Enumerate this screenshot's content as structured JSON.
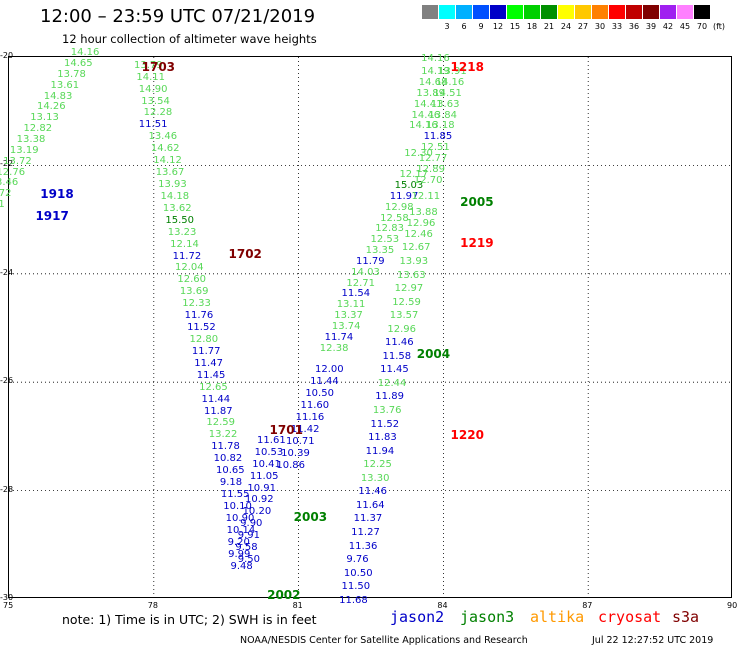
{
  "header": {
    "title": "12:00 – 23:59 UTC 07/21/2019",
    "subtitle": "12 hour collection of altimeter wave heights"
  },
  "legend": {
    "unit": "(ft)",
    "items": [
      {
        "value": "",
        "color": "#808080"
      },
      {
        "value": "3",
        "color": "#00ffff"
      },
      {
        "value": "6",
        "color": "#00b0ff"
      },
      {
        "value": "9",
        "color": "#0050ff"
      },
      {
        "value": "12",
        "color": "#0000c8"
      },
      {
        "value": "15",
        "color": "#00ff00"
      },
      {
        "value": "18",
        "color": "#00d000"
      },
      {
        "value": "21",
        "color": "#009000"
      },
      {
        "value": "24",
        "color": "#ffff00"
      },
      {
        "value": "27",
        "color": "#ffc800"
      },
      {
        "value": "30",
        "color": "#ff8000"
      },
      {
        "value": "33",
        "color": "#ff0000"
      },
      {
        "value": "36",
        "color": "#c00000"
      },
      {
        "value": "39",
        "color": "#800000"
      },
      {
        "value": "42",
        "color": "#a020f0"
      },
      {
        "value": "45",
        "color": "#ff80ff"
      },
      {
        "value": "70",
        "color": "#000000"
      }
    ]
  },
  "axes": {
    "x_ticks": [
      "75",
      "78",
      "81",
      "84",
      "87",
      "90"
    ],
    "y_ticks": [
      "-20",
      "-22",
      "-24",
      "-26",
      "-28",
      "-30"
    ]
  },
  "colors": {
    "green_light": "#58d858",
    "blue": "#0000c8",
    "darkgreen": "#008000",
    "darkred": "#800000",
    "red": "#ff0000",
    "jason2": "#0000c8",
    "jason3": "#008000",
    "altika": "#ff9900",
    "cryosat": "#ff0000",
    "s3a": "#800000"
  },
  "map": {
    "track_labels": [
      {
        "lon": 76.59,
        "lat": -19.95,
        "text": "14.16",
        "c": "green_light"
      },
      {
        "lon": 76.45,
        "lat": -20.15,
        "text": "14.65",
        "c": "green_light"
      },
      {
        "lon": 76.31,
        "lat": -20.35,
        "text": "13.78",
        "c": "green_light"
      },
      {
        "lon": 76.17,
        "lat": -20.55,
        "text": "13.61",
        "c": "green_light"
      },
      {
        "lon": 76.03,
        "lat": -20.75,
        "text": "14.83",
        "c": "green_light"
      },
      {
        "lon": 75.89,
        "lat": -20.95,
        "text": "14.26",
        "c": "green_light"
      },
      {
        "lon": 75.75,
        "lat": -21.15,
        "text": "13.13",
        "c": "green_light"
      },
      {
        "lon": 75.61,
        "lat": -21.35,
        "text": "12.82",
        "c": "green_light"
      },
      {
        "lon": 75.47,
        "lat": -21.55,
        "text": "13.38",
        "c": "green_light"
      },
      {
        "lon": 75.33,
        "lat": -21.75,
        "text": "13.19",
        "c": "green_light"
      },
      {
        "lon": 75.19,
        "lat": -21.95,
        "text": "13.72",
        "c": "green_light"
      },
      {
        "lon": 75.05,
        "lat": -22.15,
        "text": "12.76",
        "c": "green_light"
      },
      {
        "lon": 74.91,
        "lat": -22.35,
        "text": "13.46",
        "c": "green_light"
      },
      {
        "lon": 74.77,
        "lat": -22.55,
        "text": "13.72",
        "c": "green_light"
      },
      {
        "lon": 74.63,
        "lat": -22.75,
        "text": "14.81",
        "c": "green_light"
      },
      {
        "lon": 74.49,
        "lat": -22.95,
        "text": "14.58",
        "c": "green_light"
      },
      {
        "lon": 77.9,
        "lat": -20.18,
        "text": "13.79",
        "c": "green_light"
      },
      {
        "lon": 77.95,
        "lat": -20.4,
        "text": "14.11",
        "c": "green_light"
      },
      {
        "lon": 78.0,
        "lat": -20.62,
        "text": "14.90",
        "c": "green_light"
      },
      {
        "lon": 78.05,
        "lat": -20.84,
        "text": "13.54",
        "c": "green_light"
      },
      {
        "lon": 78.1,
        "lat": -21.06,
        "text": "12.28",
        "c": "green_light"
      },
      {
        "lon": 78.0,
        "lat": -21.28,
        "text": "11.51",
        "c": "blue"
      },
      {
        "lon": 78.2,
        "lat": -21.5,
        "text": "13.46",
        "c": "green_light"
      },
      {
        "lon": 78.25,
        "lat": -21.72,
        "text": "14.62",
        "c": "green_light"
      },
      {
        "lon": 78.3,
        "lat": -21.94,
        "text": "14.12",
        "c": "green_light"
      },
      {
        "lon": 78.35,
        "lat": -22.16,
        "text": "13.67",
        "c": "green_light"
      },
      {
        "lon": 78.4,
        "lat": -22.38,
        "text": "13.93",
        "c": "green_light"
      },
      {
        "lon": 78.45,
        "lat": -22.6,
        "text": "14.18",
        "c": "green_light"
      },
      {
        "lon": 78.5,
        "lat": -22.82,
        "text": "13.62",
        "c": "green_light"
      },
      {
        "lon": 78.55,
        "lat": -23.04,
        "text": "15.50",
        "c": "darkgreen"
      },
      {
        "lon": 78.6,
        "lat": -23.26,
        "text": "13.23",
        "c": "green_light"
      },
      {
        "lon": 78.65,
        "lat": -23.48,
        "text": "12.14",
        "c": "green_light"
      },
      {
        "lon": 78.7,
        "lat": -23.7,
        "text": "11.72",
        "c": "blue"
      },
      {
        "lon": 78.75,
        "lat": -23.92,
        "text": "12.04",
        "c": "green_light"
      },
      {
        "lon": 78.8,
        "lat": -24.14,
        "text": "12.60",
        "c": "green_light"
      },
      {
        "lon": 78.85,
        "lat": -24.36,
        "text": "13.69",
        "c": "green_light"
      },
      {
        "lon": 78.9,
        "lat": -24.58,
        "text": "12.33",
        "c": "green_light"
      },
      {
        "lon": 78.95,
        "lat": -24.8,
        "text": "11.76",
        "c": "blue"
      },
      {
        "lon": 79.0,
        "lat": -25.02,
        "text": "11.52",
        "c": "blue"
      },
      {
        "lon": 79.05,
        "lat": -25.24,
        "text": "12.80",
        "c": "green_light"
      },
      {
        "lon": 79.1,
        "lat": -25.46,
        "text": "11.77",
        "c": "blue"
      },
      {
        "lon": 79.15,
        "lat": -25.68,
        "text": "11.47",
        "c": "blue"
      },
      {
        "lon": 79.2,
        "lat": -25.9,
        "text": "11.45",
        "c": "blue"
      },
      {
        "lon": 79.25,
        "lat": -26.12,
        "text": "12.65",
        "c": "green_light"
      },
      {
        "lon": 79.3,
        "lat": -26.34,
        "text": "11.44",
        "c": "blue"
      },
      {
        "lon": 79.35,
        "lat": -26.56,
        "text": "11.87",
        "c": "blue"
      },
      {
        "lon": 79.4,
        "lat": -26.78,
        "text": "12.59",
        "c": "green_light"
      },
      {
        "lon": 79.45,
        "lat": -27.0,
        "text": "13.22",
        "c": "green_light"
      },
      {
        "lon": 79.5,
        "lat": -27.22,
        "text": "11.78",
        "c": "blue"
      },
      {
        "lon": 79.55,
        "lat": -27.44,
        "text": "10.82",
        "c": "blue"
      },
      {
        "lon": 79.6,
        "lat": -27.66,
        "text": "10.65",
        "c": "blue"
      },
      {
        "lon": 79.68,
        "lat": -27.88,
        "text": "9.18",
        "c": "blue"
      },
      {
        "lon": 79.7,
        "lat": -28.1,
        "text": "11.55",
        "c": "blue"
      },
      {
        "lon": 79.75,
        "lat": -28.32,
        "text": "10.10",
        "c": "blue"
      },
      {
        "lon": 79.8,
        "lat": -28.54,
        "text": "10.90",
        "c": "blue"
      },
      {
        "lon": 79.82,
        "lat": -28.76,
        "text": "10.14",
        "c": "blue"
      },
      {
        "lon": 79.84,
        "lat": -28.98,
        "text": "9.20",
        "c": "blue"
      },
      {
        "lon": 79.85,
        "lat": -29.2,
        "text": "9.99",
        "c": "blue"
      },
      {
        "lon": 79.9,
        "lat": -29.42,
        "text": "9.48",
        "c": "blue"
      },
      {
        "lon": 80.45,
        "lat": -27.1,
        "text": "11.61",
        "c": "blue"
      },
      {
        "lon": 80.4,
        "lat": -27.32,
        "text": "10.53",
        "c": "blue"
      },
      {
        "lon": 80.35,
        "lat": -27.54,
        "text": "10.41",
        "c": "blue"
      },
      {
        "lon": 80.3,
        "lat": -27.76,
        "text": "11.05",
        "c": "blue"
      },
      {
        "lon": 80.25,
        "lat": -27.98,
        "text": "10.91",
        "c": "blue"
      },
      {
        "lon": 80.2,
        "lat": -28.2,
        "text": "10.92",
        "c": "blue"
      },
      {
        "lon": 80.15,
        "lat": -28.42,
        "text": "10.20",
        "c": "blue"
      },
      {
        "lon": 80.1,
        "lat": -28.64,
        "text": "9.90",
        "c": "blue"
      },
      {
        "lon": 80.05,
        "lat": -28.86,
        "text": "9.91",
        "c": "blue"
      },
      {
        "lon": 80.0,
        "lat": -29.08,
        "text": "9.58",
        "c": "blue"
      },
      {
        "lon": 80.05,
        "lat": -29.3,
        "text": "9.50",
        "c": "blue"
      },
      {
        "lon": 81.65,
        "lat": -25.8,
        "text": "12.00",
        "c": "blue"
      },
      {
        "lon": 81.55,
        "lat": -26.02,
        "text": "11.44",
        "c": "blue"
      },
      {
        "lon": 81.45,
        "lat": -26.24,
        "text": "10.50",
        "c": "blue"
      },
      {
        "lon": 81.35,
        "lat": -26.46,
        "text": "11.60",
        "c": "blue"
      },
      {
        "lon": 81.25,
        "lat": -26.68,
        "text": "11.16",
        "c": "blue"
      },
      {
        "lon": 81.15,
        "lat": -26.9,
        "text": "11.42",
        "c": "blue"
      },
      {
        "lon": 81.05,
        "lat": -27.12,
        "text": "10.71",
        "c": "blue"
      },
      {
        "lon": 80.95,
        "lat": -27.34,
        "text": "10.39",
        "c": "blue"
      },
      {
        "lon": 80.85,
        "lat": -27.56,
        "text": "10.86",
        "c": "blue"
      },
      {
        "lon": 81.75,
        "lat": -25.4,
        "text": "12.38",
        "c": "green_light"
      },
      {
        "lon": 81.85,
        "lat": -25.2,
        "text": "11.74",
        "c": "blue"
      },
      {
        "lon": 82.0,
        "lat": -25.0,
        "text": "13.74",
        "c": "green_light"
      },
      {
        "lon": 82.05,
        "lat": -24.8,
        "text": "13.37",
        "c": "green_light"
      },
      {
        "lon": 82.1,
        "lat": -24.6,
        "text": "13.11",
        "c": "green_light"
      },
      {
        "lon": 82.2,
        "lat": -24.4,
        "text": "11.54",
        "c": "blue"
      },
      {
        "lon": 82.3,
        "lat": -24.2,
        "text": "12.71",
        "c": "green_light"
      },
      {
        "lon": 82.4,
        "lat": -24.0,
        "text": "14.03",
        "c": "green_light"
      },
      {
        "lon": 82.5,
        "lat": -23.8,
        "text": "11.79",
        "c": "blue"
      },
      {
        "lon": 82.7,
        "lat": -23.6,
        "text": "13.35",
        "c": "green_light"
      },
      {
        "lon": 82.8,
        "lat": -23.4,
        "text": "12.53",
        "c": "green_light"
      },
      {
        "lon": 82.9,
        "lat": -23.2,
        "text": "12.83",
        "c": "green_light"
      },
      {
        "lon": 83.0,
        "lat": -23.0,
        "text": "12.58",
        "c": "green_light"
      },
      {
        "lon": 83.1,
        "lat": -22.8,
        "text": "12.98",
        "c": "green_light"
      },
      {
        "lon": 83.2,
        "lat": -22.6,
        "text": "11.97",
        "c": "blue"
      },
      {
        "lon": 83.3,
        "lat": -22.4,
        "text": "15.03",
        "c": "darkgreen"
      },
      {
        "lon": 83.4,
        "lat": -22.2,
        "text": "12.17",
        "c": "green_light"
      },
      {
        "lon": 83.5,
        "lat": -21.8,
        "text": "12.30",
        "c": "green_light"
      },
      {
        "lon": 83.6,
        "lat": -21.3,
        "text": "14.16",
        "c": "green_light"
      },
      {
        "lon": 83.65,
        "lat": -21.1,
        "text": "14.46",
        "c": "green_light"
      },
      {
        "lon": 83.7,
        "lat": -20.9,
        "text": "14.41",
        "c": "green_light"
      },
      {
        "lon": 83.75,
        "lat": -20.7,
        "text": "13.89",
        "c": "green_light"
      },
      {
        "lon": 83.8,
        "lat": -20.5,
        "text": "14.68",
        "c": "green_light"
      },
      {
        "lon": 83.85,
        "lat": -20.3,
        "text": "14.19",
        "c": "green_light"
      },
      {
        "lon": 83.85,
        "lat": -20.05,
        "text": "14.16",
        "c": "green_light"
      },
      {
        "lon": 84.2,
        "lat": -20.3,
        "text": "13.91",
        "c": "green_light"
      },
      {
        "lon": 84.15,
        "lat": -20.5,
        "text": "14.16",
        "c": "green_light"
      },
      {
        "lon": 84.1,
        "lat": -20.7,
        "text": "14.51",
        "c": "green_light"
      },
      {
        "lon": 84.05,
        "lat": -20.9,
        "text": "13.63",
        "c": "green_light"
      },
      {
        "lon": 84.0,
        "lat": -21.1,
        "text": "13.84",
        "c": "green_light"
      },
      {
        "lon": 83.95,
        "lat": -21.3,
        "text": "13.18",
        "c": "green_light"
      },
      {
        "lon": 83.9,
        "lat": -21.5,
        "text": "11.85",
        "c": "blue"
      },
      {
        "lon": 83.85,
        "lat": -21.7,
        "text": "12.51",
        "c": "green_light"
      },
      {
        "lon": 83.8,
        "lat": -21.9,
        "text": "12.77",
        "c": "green_light"
      },
      {
        "lon": 83.75,
        "lat": -22.1,
        "text": "12.89",
        "c": "green_light"
      },
      {
        "lon": 83.7,
        "lat": -22.3,
        "text": "12.70",
        "c": "green_light"
      },
      {
        "lon": 83.65,
        "lat": -22.6,
        "text": "12.11",
        "c": "green_light"
      },
      {
        "lon": 83.6,
        "lat": -22.9,
        "text": "13.88",
        "c": "green_light"
      },
      {
        "lon": 83.55,
        "lat": -23.1,
        "text": "12.96",
        "c": "green_light"
      },
      {
        "lon": 83.5,
        "lat": -23.3,
        "text": "12.46",
        "c": "green_light"
      },
      {
        "lon": 83.45,
        "lat": -23.55,
        "text": "12.67",
        "c": "green_light"
      },
      {
        "lon": 83.4,
        "lat": -23.8,
        "text": "13.93",
        "c": "green_light"
      },
      {
        "lon": 83.35,
        "lat": -24.05,
        "text": "13.63",
        "c": "green_light"
      },
      {
        "lon": 83.3,
        "lat": -24.3,
        "text": "12.97",
        "c": "green_light"
      },
      {
        "lon": 83.25,
        "lat": -24.55,
        "text": "12.59",
        "c": "green_light"
      },
      {
        "lon": 83.2,
        "lat": -24.8,
        "text": "13.57",
        "c": "green_light"
      },
      {
        "lon": 83.15,
        "lat": -25.05,
        "text": "12.96",
        "c": "green_light"
      },
      {
        "lon": 83.1,
        "lat": -25.3,
        "text": "11.46",
        "c": "blue"
      },
      {
        "lon": 83.05,
        "lat": -25.55,
        "text": "11.58",
        "c": "blue"
      },
      {
        "lon": 83.0,
        "lat": -25.8,
        "text": "11.45",
        "c": "blue"
      },
      {
        "lon": 82.95,
        "lat": -26.05,
        "text": "12.44",
        "c": "green_light"
      },
      {
        "lon": 82.9,
        "lat": -26.3,
        "text": "11.89",
        "c": "blue"
      },
      {
        "lon": 82.85,
        "lat": -26.55,
        "text": "13.76",
        "c": "green_light"
      },
      {
        "lon": 82.8,
        "lat": -26.8,
        "text": "11.52",
        "c": "blue"
      },
      {
        "lon": 82.75,
        "lat": -27.05,
        "text": "11.83",
        "c": "blue"
      },
      {
        "lon": 82.7,
        "lat": -27.3,
        "text": "11.94",
        "c": "blue"
      },
      {
        "lon": 82.65,
        "lat": -27.55,
        "text": "12.25",
        "c": "green_light"
      },
      {
        "lon": 82.6,
        "lat": -27.8,
        "text": "13.30",
        "c": "green_light"
      },
      {
        "lon": 82.55,
        "lat": -28.05,
        "text": "11.46",
        "c": "blue"
      },
      {
        "lon": 82.5,
        "lat": -28.3,
        "text": "11.64",
        "c": "blue"
      },
      {
        "lon": 82.45,
        "lat": -28.55,
        "text": "11.37",
        "c": "blue"
      },
      {
        "lon": 82.4,
        "lat": -28.8,
        "text": "11.27",
        "c": "blue"
      },
      {
        "lon": 82.35,
        "lat": -29.05,
        "text": "11.36",
        "c": "blue"
      },
      {
        "lon": 82.3,
        "lat": -29.3,
        "text": "9.76",
        "c": "blue"
      },
      {
        "lon": 82.25,
        "lat": -29.55,
        "text": "10.50",
        "c": "blue"
      },
      {
        "lon": 82.2,
        "lat": -29.8,
        "text": "11.50",
        "c": "blue"
      },
      {
        "lon": 82.15,
        "lat": -30.05,
        "text": "11.68",
        "c": "blue"
      }
    ],
    "pass_labels": [
      {
        "lon": 78.1,
        "lat": -20.2,
        "text": "1703",
        "c": "darkred"
      },
      {
        "lon": 76.0,
        "lat": -22.55,
        "text": "1918",
        "c": "blue"
      },
      {
        "lon": 75.9,
        "lat": -22.95,
        "text": "1917",
        "c": "blue"
      },
      {
        "lon": 79.9,
        "lat": -23.65,
        "text": "1702",
        "c": "darkred"
      },
      {
        "lon": 80.75,
        "lat": -26.9,
        "text": "1701",
        "c": "darkred"
      },
      {
        "lon": 81.25,
        "lat": -28.5,
        "text": "2003",
        "c": "darkgreen"
      },
      {
        "lon": 80.7,
        "lat": -29.95,
        "text": "2002",
        "c": "darkgreen"
      },
      {
        "lon": 83.8,
        "lat": -25.5,
        "text": "2004",
        "c": "darkgreen"
      },
      {
        "lon": 84.7,
        "lat": -22.7,
        "text": "2005",
        "c": "darkgreen"
      },
      {
        "lon": 84.7,
        "lat": -23.45,
        "text": "1219",
        "c": "red"
      },
      {
        "lon": 84.5,
        "lat": -20.2,
        "text": "1218",
        "c": "red"
      },
      {
        "lon": 84.5,
        "lat": -27.0,
        "text": "1220",
        "c": "red"
      }
    ]
  },
  "note": {
    "text": "note:  1) Time is in UTC;  2) SWH is in feet",
    "satellites": [
      {
        "name": "jason2",
        "color_key": "jason2"
      },
      {
        "name": "jason3",
        "color_key": "jason3"
      },
      {
        "name": "altika",
        "color_key": "altika"
      },
      {
        "name": "cryosat",
        "color_key": "cryosat"
      },
      {
        "name": "s3a",
        "color_key": "s3a"
      }
    ]
  },
  "footer": {
    "credit": "NOAA/NESDIS Center for Satellite Applications and Research",
    "timestamp": "Jul 22 12:27:52 UTC 2019"
  }
}
